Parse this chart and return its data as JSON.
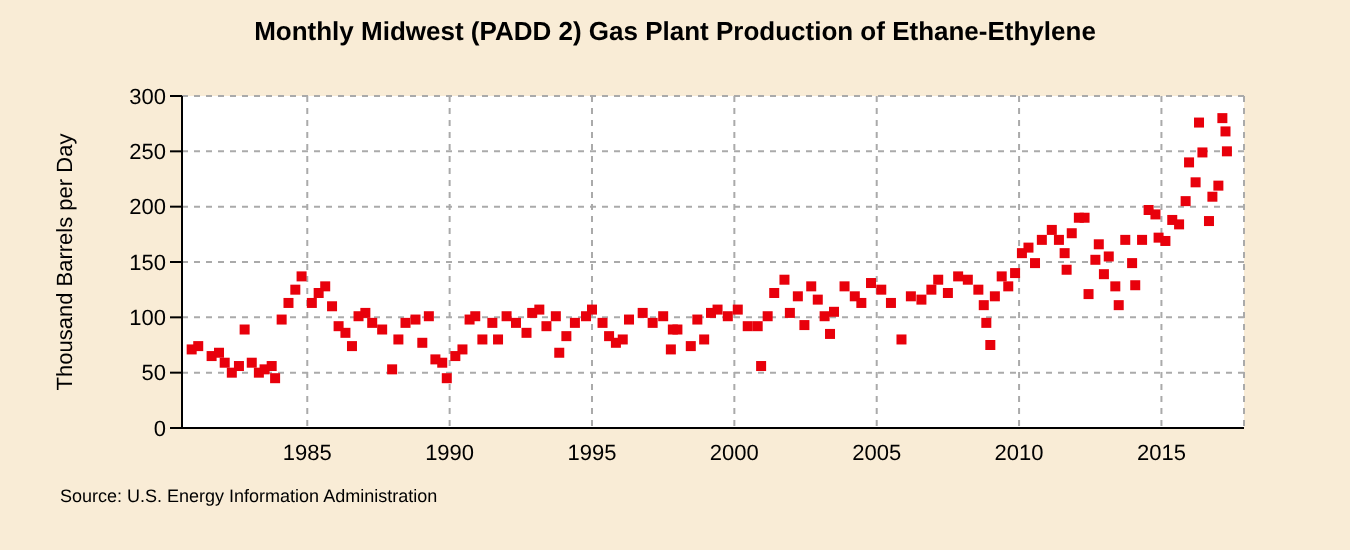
{
  "chart_data": {
    "type": "scatter",
    "title": "Monthly Midwest (PADD 2) Gas Plant Production of Ethane-Ethylene",
    "ylabel": "Thousand Barrels per Day",
    "annotations": [
      "Source: U.S. Energy Information Administration"
    ],
    "x": [
      1980.94,
      1981.17,
      1981.64,
      1981.9,
      1982.1,
      1982.35,
      1982.6,
      1982.8,
      1983.05,
      1983.3,
      1983.5,
      1983.75,
      1983.87,
      1984.1,
      1984.34,
      1984.58,
      1984.8,
      1985.16,
      1985.4,
      1985.63,
      1985.87,
      1986.1,
      1986.34,
      1986.57,
      1986.8,
      1987.04,
      1987.28,
      1987.63,
      1987.98,
      1988.2,
      1988.45,
      1988.8,
      1989.04,
      1989.27,
      1989.5,
      1989.74,
      1989.9,
      1990.2,
      1990.45,
      1990.7,
      1990.9,
      1991.15,
      1991.5,
      1991.7,
      1992.0,
      1992.33,
      1992.7,
      1992.9,
      1993.15,
      1993.4,
      1993.73,
      1993.85,
      1994.1,
      1994.4,
      1994.79,
      1995.0,
      1995.37,
      1995.6,
      1995.84,
      1996.08,
      1996.3,
      1996.78,
      1997.13,
      1997.5,
      1997.77,
      1997.84,
      1998.0,
      1998.47,
      1998.7,
      1998.94,
      1999.18,
      1999.41,
      1999.77,
      2000.12,
      2000.47,
      2000.82,
      2000.94,
      2001.17,
      2001.4,
      2001.76,
      2001.95,
      2002.23,
      2002.46,
      2002.7,
      2002.93,
      2003.17,
      2003.36,
      2003.5,
      2003.87,
      2004.23,
      2004.46,
      2004.8,
      2005.16,
      2005.5,
      2005.87,
      2006.2,
      2006.57,
      2006.92,
      2007.16,
      2007.5,
      2007.86,
      2008.2,
      2008.57,
      2008.76,
      2008.85,
      2008.99,
      2009.15,
      2009.39,
      2009.62,
      2009.86,
      2010.1,
      2010.33,
      2010.56,
      2010.8,
      2011.15,
      2011.4,
      2011.6,
      2011.67,
      2011.85,
      2012.1,
      2012.3,
      2012.44,
      2012.68,
      2012.8,
      2012.98,
      2013.15,
      2013.38,
      2013.5,
      2013.73,
      2013.97,
      2014.08,
      2014.32,
      2014.55,
      2014.79,
      2014.9,
      2015.14,
      2015.38,
      2015.62,
      2015.85,
      2015.97,
      2016.2,
      2016.32,
      2016.44,
      2016.67,
      2016.79,
      2017.0,
      2017.14,
      2017.25,
      2017.3
    ],
    "values": [
      71,
      74,
      65,
      68,
      59,
      50,
      56,
      89,
      59,
      50,
      53,
      56,
      45,
      98,
      113,
      125,
      137,
      113,
      122,
      128,
      110,
      92,
      86,
      74,
      101,
      104,
      95,
      89,
      53,
      80,
      95,
      98,
      77,
      101,
      62,
      59,
      45,
      65,
      71,
      98,
      101,
      80,
      95,
      80,
      101,
      95,
      86,
      104,
      107,
      92,
      101,
      68,
      83,
      95,
      101,
      107,
      95,
      83,
      77,
      80,
      98,
      104,
      95,
      101,
      71,
      89,
      89,
      74,
      98,
      80,
      104,
      107,
      101,
      107,
      92,
      92,
      56,
      101,
      122,
      134,
      104,
      119,
      93,
      128,
      116,
      101,
      85,
      105,
      128,
      119,
      113,
      131,
      125,
      113,
      80,
      119,
      116,
      125,
      134,
      122,
      137,
      134,
      125,
      111,
      95,
      75,
      119,
      137,
      128,
      140,
      158,
      163,
      149,
      170,
      179,
      170,
      158,
      143,
      176,
      190,
      190,
      121,
      152,
      166,
      139,
      155,
      128,
      111,
      170,
      149,
      129,
      170,
      197,
      193,
      172,
      169,
      188,
      184,
      205,
      240,
      222,
      276,
      249,
      187,
      209,
      219,
      280,
      268,
      250
    ],
    "color": "#e8000b",
    "marker": "square",
    "xlim": [
      1980.6,
      2017.9
    ],
    "xticks": [
      1985,
      1990,
      1995,
      2000,
      2005,
      2010,
      2015
    ],
    "ylim": [
      0,
      300
    ],
    "yticks": [
      0,
      50,
      100,
      150,
      200,
      250,
      300
    ],
    "grid": true,
    "legend": false
  }
}
